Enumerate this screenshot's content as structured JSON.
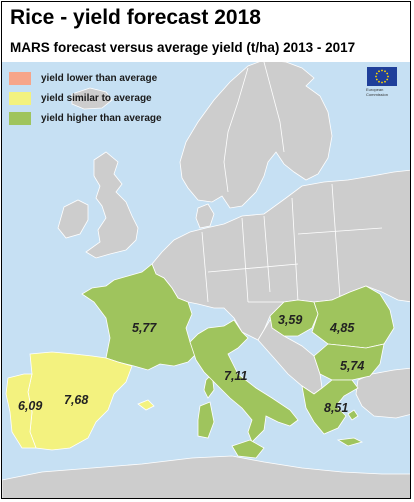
{
  "title": "Rice - yield forecast 2018",
  "subtitle": "MARS forecast versus average yield (t/ha) 2013 - 2017",
  "legend": [
    {
      "label": "yield lower than average",
      "color": "#f6a58a"
    },
    {
      "label": "yield similar to average",
      "color": "#f3f27f"
    },
    {
      "label": "yield higher than average",
      "color": "#9fc45d"
    }
  ],
  "logo": {
    "icon": "eu-flag-icon",
    "text_line1": "European",
    "text_line2": "Commission"
  },
  "colors": {
    "sea": "#c6e0f3",
    "land": "#cdcdcd",
    "border": "#ffffff"
  },
  "regions": [
    {
      "country": "France",
      "value": "5,77",
      "category": "higher"
    },
    {
      "country": "Italy",
      "value": "7,11",
      "category": "higher"
    },
    {
      "country": "Spain",
      "value": "7,68",
      "category": "similar"
    },
    {
      "country": "Portugal",
      "value": "6,09",
      "category": "similar"
    },
    {
      "country": "Hungary",
      "value": "3,59",
      "category": "higher"
    },
    {
      "country": "Romania",
      "value": "4,85",
      "category": "higher"
    },
    {
      "country": "Bulgaria",
      "value": "5,74",
      "category": "higher"
    },
    {
      "country": "Greece",
      "value": "8,51",
      "category": "higher"
    }
  ]
}
